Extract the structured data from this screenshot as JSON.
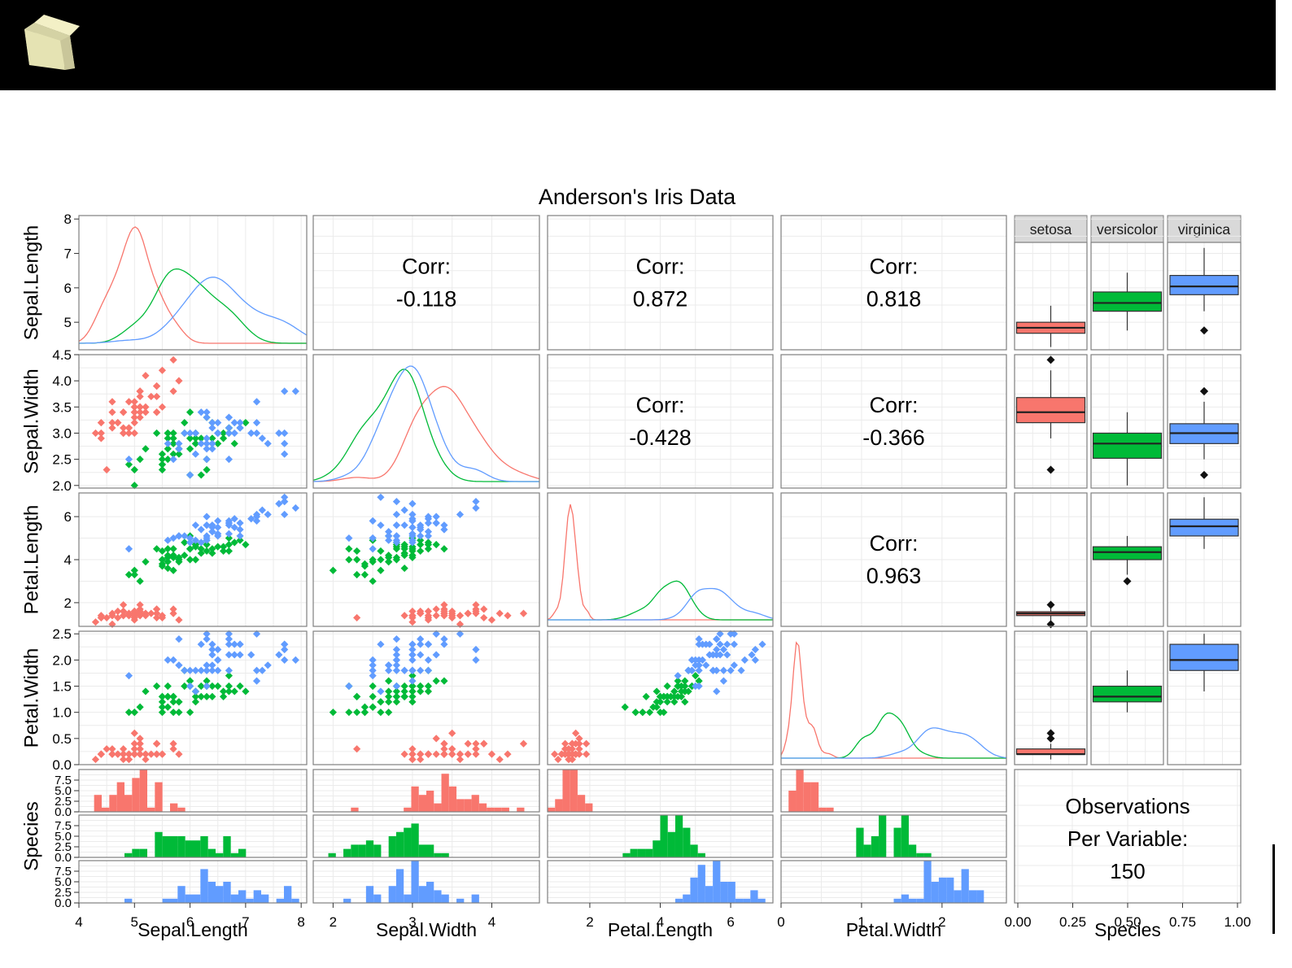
{
  "header": {
    "logo_icon": "cube-icon"
  },
  "chart_data": {
    "type": "scatter-matrix",
    "title": "Anderson's Iris Data",
    "variables": [
      "Sepal.Length",
      "Sepal.Width",
      "Petal.Length",
      "Petal.Width",
      "Species"
    ],
    "species": [
      "setosa",
      "versicolor",
      "virginica"
    ],
    "colors": {
      "setosa": "#F8766D",
      "versicolor": "#00BA38",
      "virginica": "#619CFF"
    },
    "correlations": [
      {
        "row": "Sepal.Length",
        "col": "Sepal.Width",
        "label": "Corr:",
        "value": "-0.118"
      },
      {
        "row": "Sepal.Length",
        "col": "Petal.Length",
        "label": "Corr:",
        "value": "0.872"
      },
      {
        "row": "Sepal.Length",
        "col": "Petal.Width",
        "label": "Corr:",
        "value": "0.818"
      },
      {
        "row": "Sepal.Width",
        "col": "Petal.Length",
        "label": "Corr:",
        "value": "-0.428"
      },
      {
        "row": "Sepal.Width",
        "col": "Petal.Width",
        "label": "Corr:",
        "value": "-0.366"
      },
      {
        "row": "Petal.Length",
        "col": "Petal.Width",
        "label": "Corr:",
        "value": "0.963"
      }
    ],
    "observations_text": [
      "Observations",
      "Per Variable:",
      "150"
    ],
    "y_axes": {
      "Sepal.Length": {
        "range": [
          4.2,
          8.1
        ],
        "ticks": [
          "5",
          "6",
          "7",
          "8"
        ],
        "tick_values": [
          5,
          6,
          7,
          8
        ]
      },
      "Sepal.Width": {
        "range": [
          1.95,
          4.5
        ],
        "ticks": [
          "2.0",
          "2.5",
          "3.0",
          "3.5",
          "4.0",
          "4.5"
        ],
        "tick_values": [
          2,
          2.5,
          3,
          3.5,
          4,
          4.5
        ]
      },
      "Petal.Length": {
        "range": [
          0.9,
          7.1
        ],
        "ticks": [
          "2",
          "4",
          "6"
        ],
        "tick_values": [
          2,
          4,
          6
        ]
      },
      "Petal.Width": {
        "range": [
          0,
          2.55
        ],
        "ticks": [
          "0.0",
          "0.5",
          "1.0",
          "1.5",
          "2.0",
          "2.5"
        ],
        "tick_values": [
          0,
          0.5,
          1,
          1.5,
          2,
          2.5
        ]
      },
      "Species": {
        "range": [
          0,
          10
        ],
        "ticks": [
          "0.0",
          "2.5",
          "5.0",
          "7.5"
        ],
        "tick_values": [
          0,
          2.5,
          5,
          7.5
        ]
      }
    },
    "x_axes": {
      "Sepal.Length": {
        "range": [
          4.0,
          8.1
        ],
        "ticks": [
          "4",
          "5",
          "6",
          "7",
          "8"
        ],
        "tick_values": [
          4,
          5,
          6,
          7,
          8
        ]
      },
      "Sepal.Width": {
        "range": [
          1.75,
          4.6
        ],
        "ticks": [
          "2",
          "3",
          "4"
        ],
        "tick_values": [
          2,
          3,
          4
        ]
      },
      "Petal.Length": {
        "range": [
          0.8,
          7.2
        ],
        "ticks": [
          "2",
          "4",
          "6"
        ],
        "tick_values": [
          2,
          4,
          6
        ]
      },
      "Petal.Width": {
        "range": [
          0,
          2.8
        ],
        "ticks": [
          "0",
          "1",
          "2"
        ],
        "tick_values": [
          0,
          1,
          2
        ]
      },
      "Species": {
        "range": [
          0,
          1
        ],
        "ticks": [
          "0.00",
          "0.25",
          "0.50",
          "0.75",
          "1.00"
        ],
        "tick_values": [
          0,
          0.25,
          0.5,
          0.75,
          1
        ]
      }
    },
    "points": {
      "setosa": {
        "Sepal.Length": [
          5.1,
          4.9,
          4.7,
          4.6,
          5.0,
          5.4,
          4.6,
          5.0,
          4.4,
          4.9,
          5.4,
          4.8,
          4.8,
          4.3,
          5.8,
          5.7,
          5.4,
          5.1,
          5.7,
          5.1,
          5.4,
          5.1,
          4.6,
          5.1,
          4.8,
          5.0,
          5.0,
          5.2,
          5.2,
          4.7,
          4.8,
          5.4,
          5.2,
          5.5,
          4.9,
          5.0,
          5.5,
          4.9,
          4.4,
          5.1,
          5.0,
          4.5,
          4.4,
          5.0,
          5.1,
          4.8,
          5.1,
          4.6,
          5.3,
          5.0
        ],
        "Sepal.Width": [
          3.5,
          3.0,
          3.2,
          3.1,
          3.6,
          3.9,
          3.4,
          3.4,
          2.9,
          3.1,
          3.7,
          3.4,
          3.0,
          3.0,
          4.0,
          4.4,
          3.9,
          3.5,
          3.8,
          3.8,
          3.4,
          3.7,
          3.6,
          3.3,
          3.4,
          3.0,
          3.4,
          3.5,
          3.4,
          3.2,
          3.1,
          3.4,
          4.1,
          4.2,
          3.1,
          3.2,
          3.5,
          3.6,
          3.0,
          3.4,
          3.5,
          2.3,
          3.2,
          3.5,
          3.8,
          3.0,
          3.8,
          3.2,
          3.7,
          3.3
        ],
        "Petal.Length": [
          1.4,
          1.4,
          1.3,
          1.5,
          1.4,
          1.7,
          1.4,
          1.5,
          1.4,
          1.5,
          1.5,
          1.6,
          1.4,
          1.1,
          1.2,
          1.5,
          1.3,
          1.4,
          1.7,
          1.5,
          1.7,
          1.5,
          1.0,
          1.7,
          1.9,
          1.6,
          1.6,
          1.5,
          1.4,
          1.6,
          1.6,
          1.5,
          1.5,
          1.4,
          1.5,
          1.2,
          1.3,
          1.4,
          1.3,
          1.5,
          1.3,
          1.3,
          1.3,
          1.6,
          1.9,
          1.4,
          1.6,
          1.4,
          1.5,
          1.4
        ],
        "Petal.Width": [
          0.2,
          0.2,
          0.2,
          0.2,
          0.2,
          0.4,
          0.3,
          0.2,
          0.2,
          0.1,
          0.2,
          0.2,
          0.1,
          0.1,
          0.2,
          0.4,
          0.4,
          0.3,
          0.3,
          0.3,
          0.2,
          0.4,
          0.2,
          0.5,
          0.2,
          0.2,
          0.4,
          0.2,
          0.2,
          0.2,
          0.2,
          0.4,
          0.1,
          0.2,
          0.2,
          0.2,
          0.2,
          0.1,
          0.2,
          0.2,
          0.3,
          0.3,
          0.2,
          0.6,
          0.4,
          0.3,
          0.2,
          0.2,
          0.2,
          0.2
        ]
      },
      "versicolor": {
        "Sepal.Length": [
          7.0,
          6.4,
          6.9,
          5.5,
          6.5,
          5.7,
          6.3,
          4.9,
          6.6,
          5.2,
          5.0,
          5.9,
          6.0,
          6.1,
          5.6,
          6.7,
          5.6,
          5.8,
          6.2,
          5.6,
          5.9,
          6.1,
          6.3,
          6.1,
          6.4,
          6.6,
          6.8,
          6.7,
          6.0,
          5.7,
          5.5,
          5.5,
          5.8,
          6.0,
          5.4,
          6.0,
          6.7,
          6.3,
          5.6,
          5.5,
          5.5,
          6.1,
          5.8,
          5.0,
          5.6,
          5.7,
          5.7,
          6.2,
          5.1,
          5.7
        ],
        "Sepal.Width": [
          3.2,
          3.2,
          3.1,
          2.3,
          2.8,
          2.8,
          3.3,
          2.4,
          2.9,
          2.7,
          2.0,
          3.0,
          2.2,
          2.9,
          2.9,
          3.1,
          3.0,
          2.7,
          2.2,
          2.5,
          3.2,
          2.8,
          2.5,
          2.8,
          2.9,
          3.0,
          2.8,
          3.0,
          2.9,
          2.6,
          2.4,
          2.4,
          2.7,
          2.7,
          3.0,
          3.4,
          3.1,
          2.3,
          3.0,
          2.5,
          2.6,
          3.0,
          2.6,
          2.3,
          2.7,
          3.0,
          2.9,
          2.9,
          2.5,
          2.8
        ],
        "Petal.Length": [
          4.7,
          4.5,
          4.9,
          4.0,
          4.6,
          4.5,
          4.7,
          3.3,
          4.6,
          3.9,
          3.5,
          4.2,
          4.0,
          4.7,
          3.6,
          4.4,
          4.5,
          4.1,
          4.5,
          3.9,
          4.8,
          4.0,
          4.9,
          4.7,
          4.3,
          4.4,
          4.8,
          5.0,
          4.5,
          3.5,
          3.8,
          3.7,
          3.9,
          5.1,
          4.5,
          4.5,
          4.7,
          4.4,
          4.1,
          4.0,
          4.4,
          4.6,
          4.0,
          3.3,
          4.2,
          4.2,
          4.2,
          4.3,
          3.0,
          4.1
        ],
        "Petal.Width": [
          1.4,
          1.5,
          1.5,
          1.3,
          1.5,
          1.3,
          1.6,
          1.0,
          1.3,
          1.4,
          1.0,
          1.5,
          1.0,
          1.4,
          1.3,
          1.4,
          1.5,
          1.0,
          1.5,
          1.1,
          1.8,
          1.3,
          1.5,
          1.2,
          1.3,
          1.4,
          1.4,
          1.7,
          1.5,
          1.0,
          1.1,
          1.0,
          1.2,
          1.6,
          1.5,
          1.6,
          1.5,
          1.3,
          1.3,
          1.3,
          1.2,
          1.4,
          1.2,
          1.0,
          1.3,
          1.2,
          1.3,
          1.3,
          1.1,
          1.3
        ]
      },
      "virginica": {
        "Sepal.Length": [
          6.3,
          5.8,
          7.1,
          6.3,
          6.5,
          7.6,
          4.9,
          7.3,
          6.7,
          7.2,
          6.5,
          6.4,
          6.8,
          5.7,
          5.8,
          6.4,
          6.5,
          7.7,
          7.7,
          6.0,
          6.9,
          5.6,
          7.7,
          6.3,
          6.7,
          7.2,
          6.2,
          6.1,
          6.4,
          7.2,
          7.4,
          7.9,
          6.4,
          6.3,
          6.1,
          7.7,
          6.3,
          6.4,
          6.0,
          6.9,
          6.7,
          6.9,
          5.8,
          6.8,
          6.7,
          6.7,
          6.3,
          6.5,
          6.2,
          5.9
        ],
        "Sepal.Width": [
          3.3,
          2.7,
          3.0,
          2.9,
          3.0,
          3.0,
          2.5,
          2.9,
          2.5,
          3.6,
          3.2,
          2.7,
          3.0,
          2.5,
          2.8,
          3.2,
          3.0,
          3.8,
          2.6,
          2.2,
          3.2,
          2.8,
          2.8,
          2.7,
          3.3,
          3.2,
          2.8,
          3.0,
          2.8,
          3.0,
          2.8,
          3.8,
          2.8,
          2.8,
          2.6,
          3.0,
          3.4,
          3.1,
          3.0,
          3.1,
          3.1,
          3.1,
          2.7,
          3.2,
          3.3,
          3.0,
          2.5,
          3.0,
          3.4,
          3.0
        ],
        "Petal.Length": [
          6.0,
          5.1,
          5.9,
          5.6,
          5.8,
          6.6,
          4.5,
          6.3,
          5.8,
          6.1,
          5.1,
          5.3,
          5.5,
          5.0,
          5.1,
          5.3,
          5.5,
          6.7,
          6.9,
          5.0,
          5.7,
          4.9,
          6.7,
          4.9,
          5.7,
          6.0,
          4.8,
          4.9,
          5.6,
          5.8,
          6.1,
          6.4,
          5.6,
          5.1,
          5.6,
          6.1,
          5.6,
          5.5,
          4.8,
          5.4,
          5.6,
          5.1,
          5.1,
          5.9,
          5.7,
          5.2,
          5.0,
          5.2,
          5.4,
          5.1
        ],
        "Petal.Width": [
          2.5,
          1.9,
          2.1,
          1.8,
          2.2,
          2.1,
          1.7,
          1.8,
          1.8,
          2.5,
          2.0,
          1.9,
          2.1,
          2.0,
          2.4,
          2.3,
          1.8,
          2.2,
          2.3,
          1.5,
          2.3,
          2.0,
          2.0,
          1.8,
          2.1,
          1.8,
          1.8,
          1.8,
          2.1,
          1.6,
          1.9,
          2.0,
          2.2,
          1.5,
          1.4,
          2.3,
          2.4,
          1.8,
          1.8,
          2.1,
          2.4,
          2.3,
          1.9,
          2.3,
          2.5,
          2.3,
          1.9,
          2.0,
          2.3,
          1.8
        ]
      }
    },
    "boxplots": {
      "Sepal.Length": {
        "setosa": {
          "lower": 4.3,
          "q1": 4.8,
          "median": 5.0,
          "q3": 5.2,
          "upper": 5.8,
          "outliers": []
        },
        "versicolor": {
          "lower": 4.9,
          "q1": 5.6,
          "median": 5.9,
          "q3": 6.3,
          "upper": 7.0,
          "outliers": []
        },
        "virginica": {
          "lower": 5.6,
          "q1": 6.2,
          "median": 6.5,
          "q3": 6.9,
          "upper": 7.9,
          "outliers": [
            4.9
          ]
        }
      },
      "Sepal.Width": {
        "setosa": {
          "lower": 2.9,
          "q1": 3.2,
          "median": 3.4,
          "q3": 3.68,
          "upper": 4.2,
          "outliers": [
            4.4,
            2.3
          ]
        },
        "versicolor": {
          "lower": 2.0,
          "q1": 2.52,
          "median": 2.8,
          "q3": 3.0,
          "upper": 3.4,
          "outliers": []
        },
        "virginica": {
          "lower": 2.5,
          "q1": 2.8,
          "median": 3.0,
          "q3": 3.18,
          "upper": 3.6,
          "outliers": [
            3.8,
            3.8,
            2.2
          ]
        }
      },
      "Petal.Length": {
        "setosa": {
          "lower": 1.1,
          "q1": 1.4,
          "median": 1.5,
          "q3": 1.58,
          "upper": 1.9,
          "outliers": [
            1.0,
            1.9
          ]
        },
        "versicolor": {
          "lower": 3.3,
          "q1": 4.0,
          "median": 4.35,
          "q3": 4.6,
          "upper": 5.1,
          "outliers": [
            3.0
          ]
        },
        "virginica": {
          "lower": 4.5,
          "q1": 5.1,
          "median": 5.55,
          "q3": 5.88,
          "upper": 6.9,
          "outliers": []
        }
      },
      "Petal.Width": {
        "setosa": {
          "lower": 0.1,
          "q1": 0.2,
          "median": 0.2,
          "q3": 0.3,
          "upper": 0.4,
          "outliers": [
            0.5,
            0.6
          ]
        },
        "versicolor": {
          "lower": 1.0,
          "q1": 1.2,
          "median": 1.3,
          "q3": 1.5,
          "upper": 1.8,
          "outliers": []
        },
        "virginica": {
          "lower": 1.4,
          "q1": 1.8,
          "median": 2.0,
          "q3": 2.3,
          "upper": 2.5,
          "outliers": []
        }
      }
    }
  }
}
